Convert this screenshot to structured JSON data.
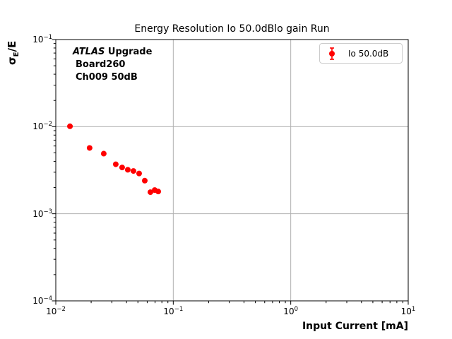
{
  "figure": {
    "background": "#ffffff",
    "frame_color": "#000000"
  },
  "ylabel": {
    "sigma": "σ",
    "sub": "E",
    "rest": "/E"
  },
  "annotation": {
    "line1_italic": "ATLAS",
    "line1_bold": " Upgrade",
    "line2": "Board260",
    "line3": "Ch009 50dB"
  },
  "chart_data": {
    "type": "scatter",
    "title": "Energy Resolution Io 50.0dBlo gain Run",
    "xlabel": "Input Current [mA]",
    "ylabel": "sigma_E/E",
    "xscale": "log",
    "yscale": "log",
    "xlim": [
      0.01,
      10
    ],
    "ylim": [
      0.0001,
      0.1
    ],
    "grid": true,
    "grid_color": "#b0b0b0",
    "legend_position": "upper right",
    "x_tick_exponents": [
      -2,
      -1,
      0,
      1
    ],
    "y_tick_exponents": [
      -1,
      -2,
      -3,
      -4
    ],
    "series": [
      {
        "name": "Io 50.0dB",
        "color": "#ff0000",
        "marker": "circle-errorbar",
        "x": [
          0.0132,
          0.0194,
          0.0256,
          0.0324,
          0.0367,
          0.041,
          0.0458,
          0.0512,
          0.0572,
          0.0639,
          0.0695,
          0.0745
        ],
        "y": [
          0.0101,
          0.0057,
          0.0049,
          0.0037,
          0.0034,
          0.0032,
          0.0031,
          0.0029,
          0.0024,
          0.00177,
          0.00187,
          0.0018
        ],
        "yerr_frac": 0.03
      }
    ]
  }
}
